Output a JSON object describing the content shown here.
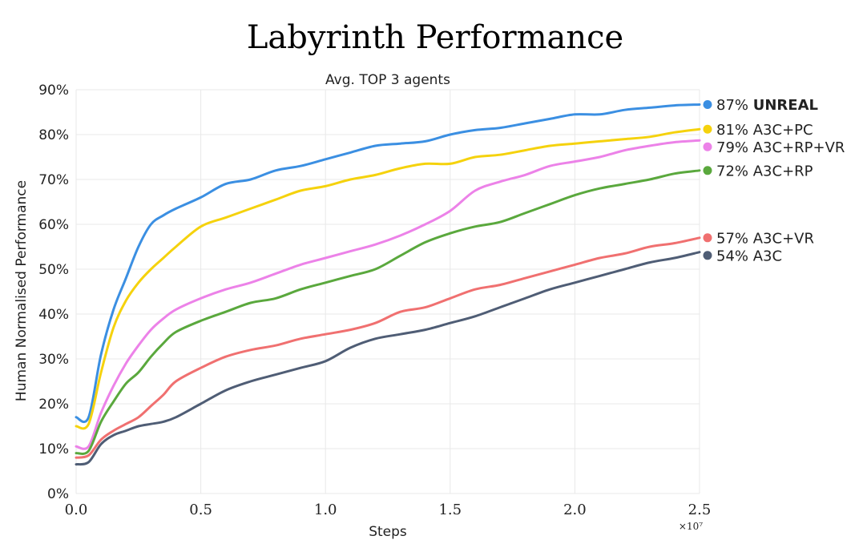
{
  "chart_data": {
    "type": "line",
    "title": "Labyrinth Performance",
    "subtitle": "Avg. TOP 3 agents",
    "xlabel": "Steps",
    "ylabel": "Human Normalised Performance",
    "x_multiplier": "×10⁷",
    "xlim": [
      0,
      2.5
    ],
    "ylim": [
      0,
      90
    ],
    "x_ticks": [
      "0.0",
      "0.5",
      "1.0",
      "1.5",
      "2.0",
      "2.5"
    ],
    "y_ticks": [
      "0%",
      "10%",
      "20%",
      "30%",
      "40%",
      "50%",
      "60%",
      "70%",
      "80%",
      "90%"
    ],
    "grid": true,
    "legend_placement": "right, at series end",
    "x": [
      0,
      0.05,
      0.1,
      0.15,
      0.2,
      0.25,
      0.3,
      0.35,
      0.4,
      0.5,
      0.6,
      0.7,
      0.8,
      0.9,
      1.0,
      1.1,
      1.2,
      1.3,
      1.4,
      1.5,
      1.6,
      1.7,
      1.8,
      1.9,
      2.0,
      2.1,
      2.2,
      2.3,
      2.4,
      2.5
    ],
    "series": [
      {
        "name": "UNREAL",
        "label_pct": "87%",
        "label_name": "UNREAL",
        "bold": true,
        "color": "#3b8fe2",
        "values": [
          17,
          17,
          31,
          41,
          48,
          55,
          60,
          62,
          63.5,
          66,
          69,
          70,
          72,
          73,
          74.5,
          76,
          77.5,
          78,
          78.5,
          80,
          81,
          81.5,
          82.5,
          83.5,
          84.5,
          84.5,
          85.5,
          86,
          86.5,
          86.7
        ]
      },
      {
        "name": "A3C+PC",
        "label_pct": "81%",
        "label_name": "A3C+PC",
        "bold": false,
        "color": "#f5d20d",
        "values": [
          15,
          15.5,
          27,
          37,
          43,
          47,
          50,
          52.5,
          55,
          59.5,
          61.5,
          63.5,
          65.5,
          67.5,
          68.5,
          70,
          71,
          72.5,
          73.5,
          73.5,
          75,
          75.5,
          76.5,
          77.5,
          78,
          78.5,
          79,
          79.5,
          80.5,
          81.2
        ]
      },
      {
        "name": "A3C+RP+VR",
        "label_pct": "79%",
        "label_name": "A3C+RP+VR",
        "bold": false,
        "color": "#ec82e8",
        "values": [
          10.5,
          10.5,
          18,
          24,
          29,
          33,
          36.5,
          39,
          41,
          43.5,
          45.5,
          47,
          49,
          51,
          52.5,
          54,
          55.5,
          57.5,
          60,
          63,
          67.5,
          69.5,
          71,
          73,
          74,
          75,
          76.5,
          77.5,
          78.3,
          78.7
        ]
      },
      {
        "name": "A3C+RP",
        "label_pct": "72%",
        "label_name": "A3C+RP",
        "bold": false,
        "color": "#5aa83d",
        "values": [
          9,
          9.5,
          16,
          20.5,
          24.5,
          27,
          30.5,
          33.5,
          36,
          38.5,
          40.5,
          42.5,
          43.5,
          45.5,
          47,
          48.5,
          50,
          53,
          56,
          58,
          59.5,
          60.5,
          62.5,
          64.5,
          66.5,
          68,
          69,
          70,
          71.3,
          72
        ]
      },
      {
        "name": "A3C+VR",
        "label_pct": "57%",
        "label_name": "A3C+VR",
        "bold": false,
        "color": "#f07070",
        "values": [
          8,
          8.5,
          12,
          14,
          15.5,
          17,
          19.5,
          22,
          25,
          28,
          30.5,
          32,
          33,
          34.5,
          35.5,
          36.5,
          38,
          40.5,
          41.5,
          43.5,
          45.5,
          46.5,
          48,
          49.5,
          51,
          52.5,
          53.5,
          55,
          55.8,
          57
        ]
      },
      {
        "name": "A3C",
        "label_pct": "54%",
        "label_name": "A3C",
        "bold": false,
        "color": "#4f5d75",
        "values": [
          6.5,
          7,
          11,
          13,
          14,
          15,
          15.5,
          16,
          17,
          20,
          23,
          25,
          26.5,
          28,
          29.5,
          32.5,
          34.5,
          35.5,
          36.5,
          38,
          39.5,
          41.5,
          43.5,
          45.5,
          47,
          48.5,
          50,
          51.5,
          52.5,
          53.8
        ]
      }
    ]
  }
}
